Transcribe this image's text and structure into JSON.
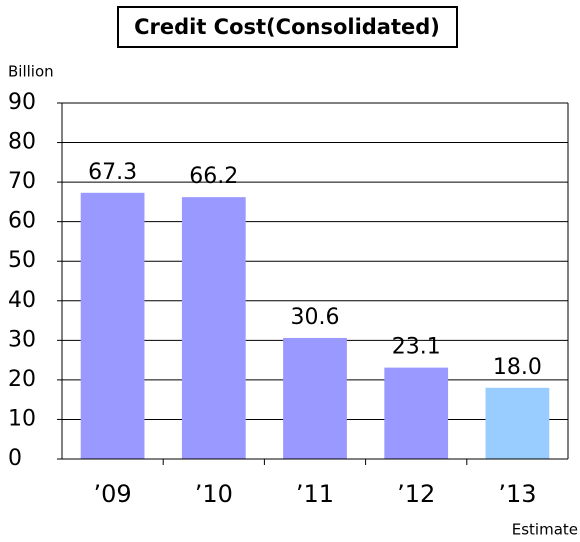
{
  "chart_data": {
    "type": "bar",
    "title": "Credit Cost(Consolidated)",
    "y_label": "Billion",
    "annotation": "Estimate",
    "categories": [
      "’09",
      "’10",
      "’11",
      "’12",
      "’13"
    ],
    "values": [
      67.3,
      66.2,
      30.6,
      23.1,
      18.0
    ],
    "value_labels": [
      "67.3",
      "66.2",
      "30.6",
      "23.1",
      "18.0"
    ],
    "colors": [
      "#9999ff",
      "#9999ff",
      "#9999ff",
      "#9999ff",
      "#99ccff"
    ],
    "ylim": [
      0,
      90
    ],
    "yticks": [
      0,
      10,
      20,
      30,
      40,
      50,
      60,
      70,
      80,
      90
    ],
    "grid": true
  }
}
